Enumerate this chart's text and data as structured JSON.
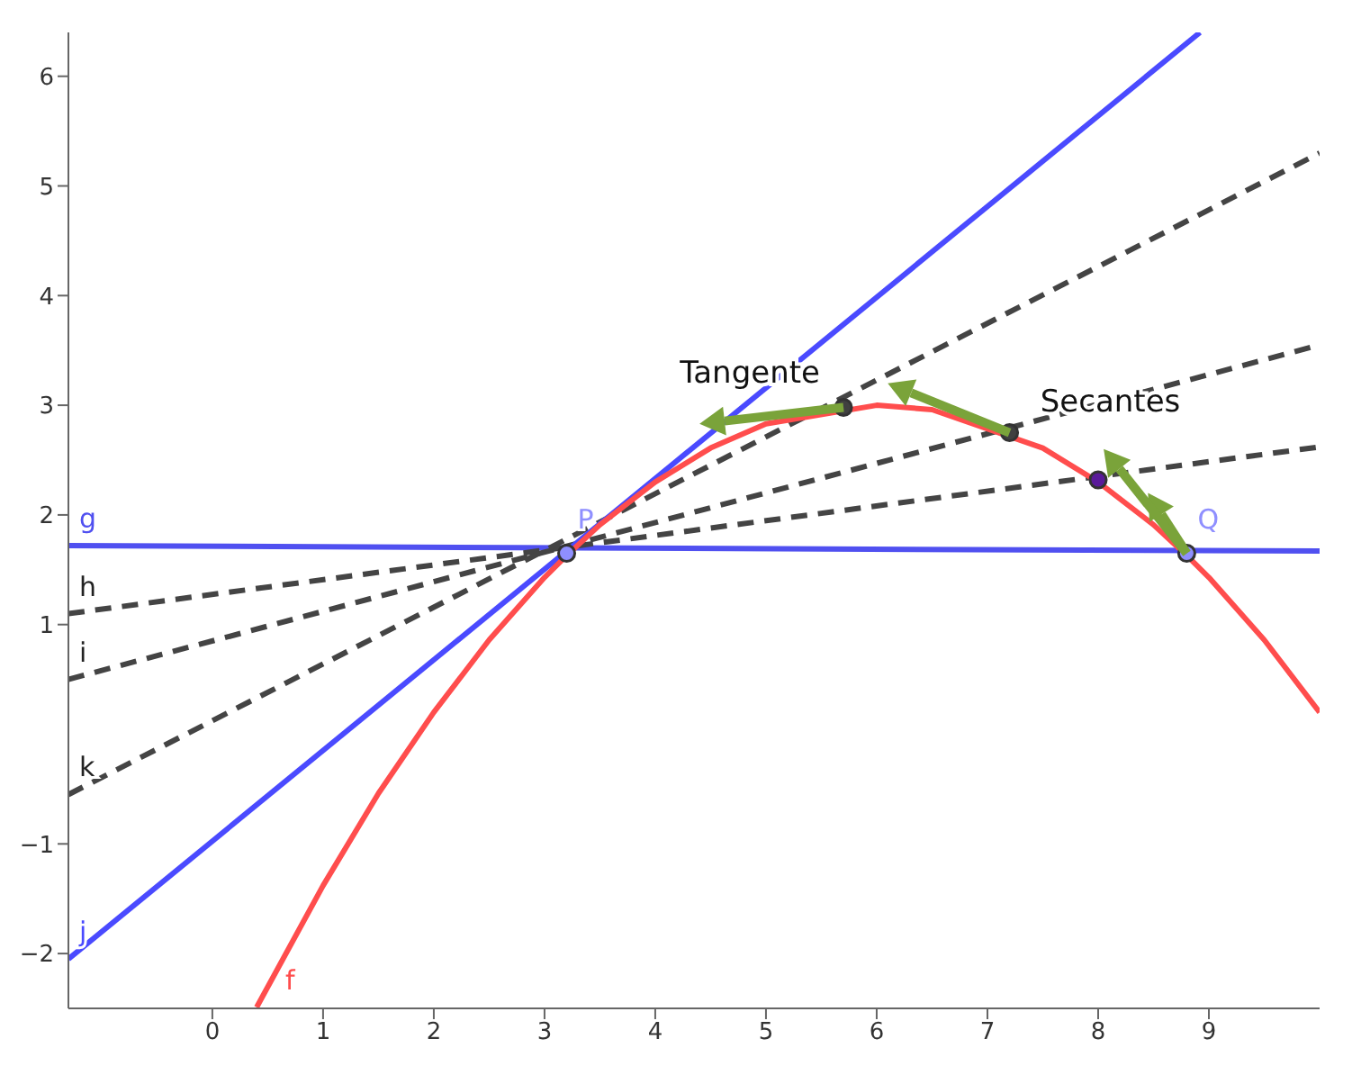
{
  "chart_data": {
    "type": "line",
    "xlim": [
      -1.3,
      10
    ],
    "ylim": [
      -2.5,
      6.4
    ],
    "xticks": [
      0,
      1,
      2,
      3,
      4,
      5,
      6,
      7,
      8,
      9
    ],
    "yticks": [
      -2,
      -1,
      1,
      2,
      3,
      4,
      5,
      6
    ],
    "grid": false,
    "legend": false,
    "series": [
      {
        "name": "g",
        "color": "#5050f0",
        "line_style": "solid",
        "x": [
          -1.3,
          10
        ],
        "values": [
          1.72,
          1.67
        ]
      },
      {
        "name": "h",
        "color": "#444444",
        "line_style": "dashed",
        "x": [
          -1.3,
          10
        ],
        "values": [
          1.1,
          2.62
        ]
      },
      {
        "name": "i",
        "color": "#444444",
        "line_style": "dashed",
        "x": [
          -1.3,
          10
        ],
        "values": [
          0.5,
          3.55
        ]
      },
      {
        "name": "k",
        "color": "#444444",
        "line_style": "dashed",
        "x": [
          -1.3,
          10
        ],
        "values": [
          -0.55,
          5.3
        ]
      },
      {
        "name": "j",
        "color": "#4a4aff",
        "line_style": "solid",
        "x": [
          -1.3,
          8.92
        ],
        "values": [
          -2.05,
          6.4
        ]
      },
      {
        "name": "f",
        "color": "#ff4d4d",
        "line_style": "solid",
        "x": [
          0.4,
          1,
          1.5,
          2,
          2.5,
          3,
          3.2,
          3.5,
          4,
          4.5,
          5,
          6,
          6.5,
          7.5,
          8,
          8.5,
          8.8,
          9,
          9.5,
          10
        ],
        "values": [
          -2.49,
          -1.38,
          -0.54,
          0.2,
          0.86,
          1.43,
          1.63,
          1.91,
          2.3,
          2.61,
          2.83,
          3,
          2.96,
          2.61,
          2.3,
          1.91,
          1.63,
          1.43,
          0.86,
          0.2
        ]
      },
      {
        "name": "P",
        "type": "scatter",
        "color": "#8f8fff",
        "x": [
          3.2
        ],
        "values": [
          1.65
        ]
      },
      {
        "name": "Q",
        "type": "scatter",
        "color": "#8f8fff",
        "x": [
          8.8
        ],
        "values": [
          1.65
        ]
      },
      {
        "type": "scatter",
        "color": "#404040",
        "x": [
          5.7,
          7.2
        ],
        "values": [
          2.98,
          2.75
        ]
      },
      {
        "type": "scatter",
        "color": "#5a1a9a",
        "x": [
          8
        ],
        "values": [
          2.32
        ]
      }
    ],
    "annotations": [
      "Tangente",
      "Secantes"
    ]
  }
}
